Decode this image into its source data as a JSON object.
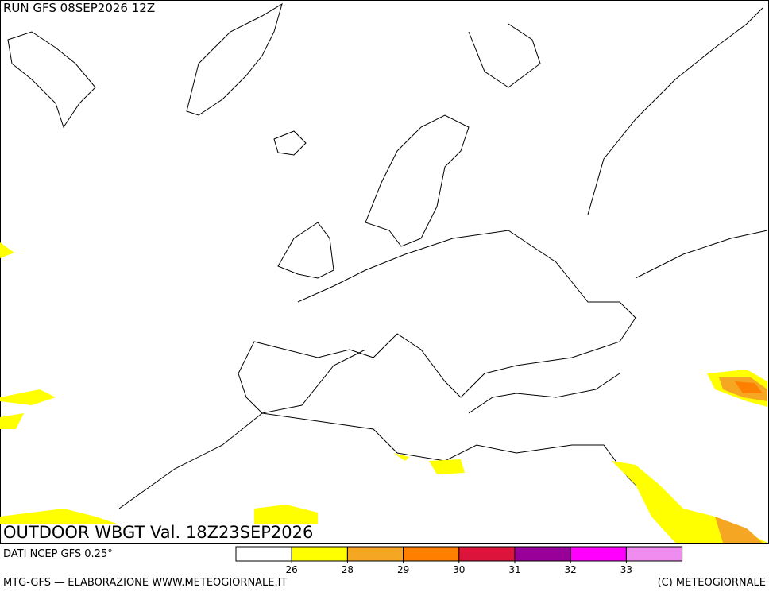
{
  "header": {
    "run": "RUN GFS 08SEP2026 12Z",
    "title": "OUTDOOR WBGT Val. 18Z23SEP2026"
  },
  "footer": {
    "source": "DATI NCEP GFS 0.25°",
    "credit": "MTG-GFS — ELABORAZIONE WWW.METEOGIORNALE.IT",
    "copyright": "(C) METEOGIORNALE"
  },
  "legend": {
    "colors": [
      "#ffffff",
      "#ffff00",
      "#f5a623",
      "#ff7f00",
      "#dc143c",
      "#990099",
      "#ff00ff",
      "#f08cf0"
    ],
    "ticks": [
      26,
      28,
      29,
      30,
      31,
      32,
      33
    ]
  }
}
